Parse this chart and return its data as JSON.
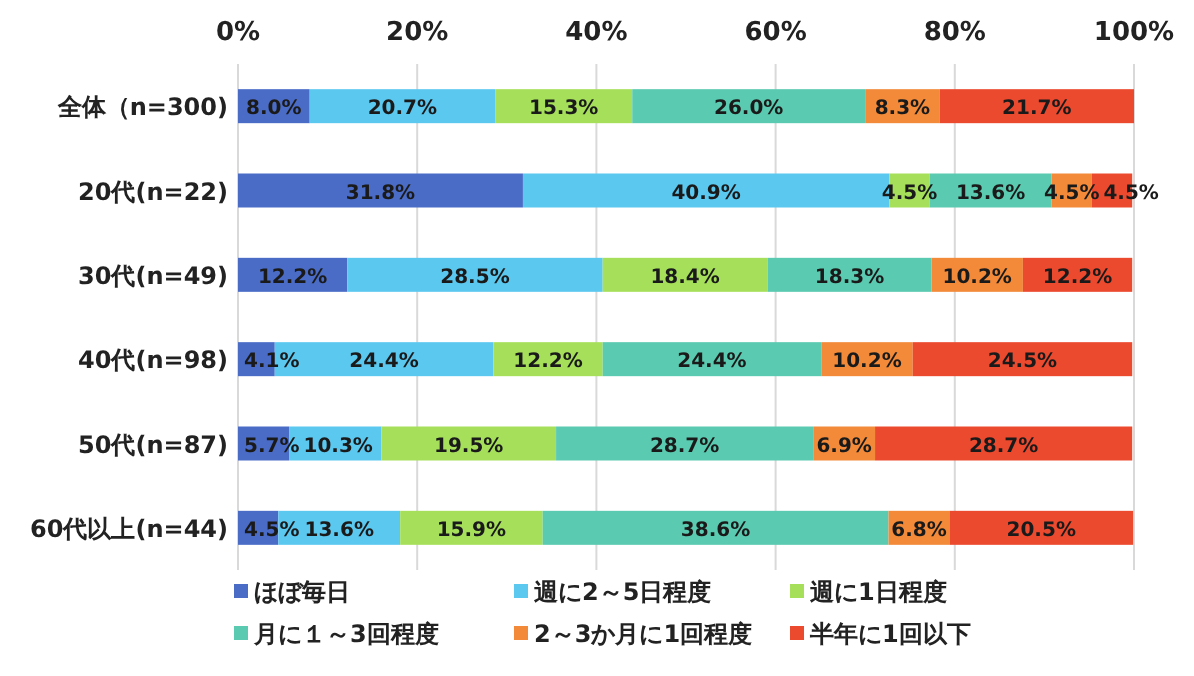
{
  "chart_data": {
    "type": "bar",
    "orientation": "horizontal",
    "stacked": true,
    "grid": "x",
    "legend": "bottom",
    "categories": [
      "全体（n=300)",
      "20代(n=22)",
      "30代(n=49)",
      "40代(n=98)",
      "50代(n=87)",
      "60代以上(n=44)"
    ],
    "xlim": [
      0,
      100
    ],
    "xticks": [
      {
        "value": 0,
        "label": "0%"
      },
      {
        "value": 20,
        "label": "20%"
      },
      {
        "value": 40,
        "label": "40%"
      },
      {
        "value": 60,
        "label": "60%"
      },
      {
        "value": 80,
        "label": "80%"
      },
      {
        "value": 100,
        "label": "100%"
      }
    ],
    "series": [
      {
        "name": "ほぼ毎日",
        "color": "#4a6cc7",
        "values": [
          8.0,
          31.8,
          12.2,
          4.1,
          5.7,
          4.5
        ],
        "value_labels": [
          "8.0%",
          "31.8%",
          "12.2%",
          "4.1%",
          "5.7%",
          "4.5%"
        ]
      },
      {
        "name": "週に2～5日程度",
        "color": "#5bc8f0",
        "values": [
          20.7,
          40.9,
          28.5,
          24.4,
          10.3,
          13.6
        ],
        "value_labels": [
          "20.7%",
          "40.9%",
          "28.5%",
          "24.4%",
          "10.3%",
          "13.6%"
        ]
      },
      {
        "name": "週に1日程度",
        "color": "#a6e05a",
        "values": [
          15.3,
          4.5,
          18.4,
          12.2,
          19.5,
          15.9
        ],
        "value_labels": [
          "15.3%",
          "4.5%",
          "18.4%",
          "12.2%",
          "19.5%",
          "15.9%"
        ]
      },
      {
        "name": "月に１～3回程度",
        "color": "#5acbb0",
        "values": [
          26.0,
          13.6,
          18.3,
          24.4,
          28.7,
          38.6
        ],
        "value_labels": [
          "26.0%",
          "13.6%",
          "18.3%",
          "24.4%",
          "28.7%",
          "38.6%"
        ]
      },
      {
        "name": "2～3か月に1回程度",
        "color": "#f28a3a",
        "values": [
          8.3,
          4.5,
          10.2,
          10.2,
          6.9,
          6.8
        ],
        "value_labels": [
          "8.3%",
          "4.5%",
          "10.2%",
          "10.2%",
          "6.9%",
          "6.8%"
        ]
      },
      {
        "name": "半年に1回以下",
        "color": "#ec4a2e",
        "values": [
          21.7,
          4.5,
          12.2,
          24.5,
          28.7,
          20.5
        ],
        "value_labels": [
          "21.7%",
          "4.5%",
          "12.2%",
          "24.5%",
          "28.7%",
          "20.5%"
        ]
      }
    ]
  }
}
